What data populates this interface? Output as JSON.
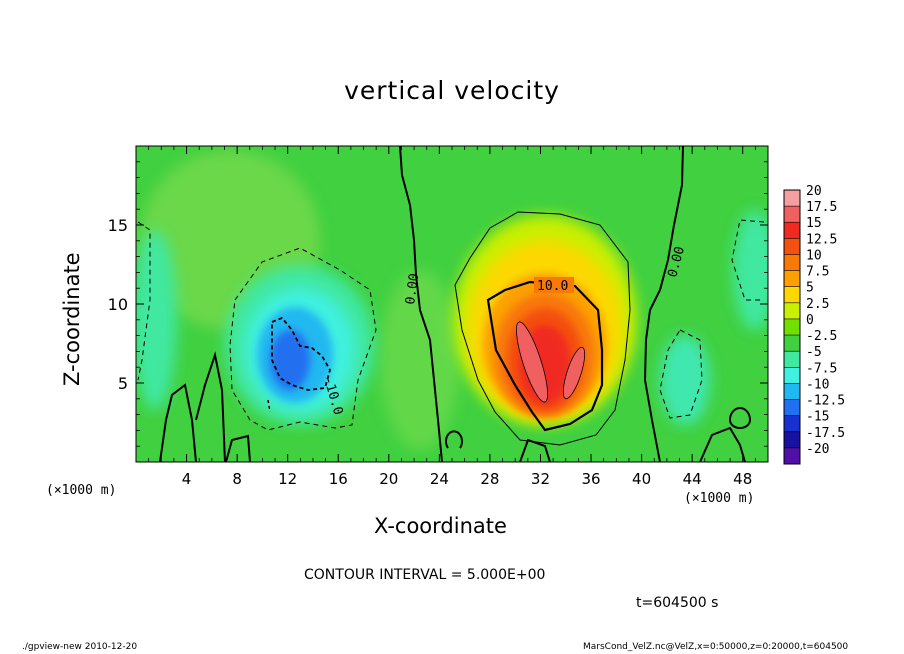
{
  "chart_data": {
    "type": "heatmap",
    "title": "vertical velocity",
    "xlabel": "X-coordinate",
    "ylabel": "Z-coordinate",
    "x_unit_label": "(×1000 m)",
    "xlim": [
      0,
      50
    ],
    "ylim": [
      0,
      20
    ],
    "x_ticks": [
      4,
      8,
      12,
      16,
      20,
      24,
      28,
      32,
      36,
      40,
      44,
      48
    ],
    "y_ticks": [
      5,
      10,
      15
    ],
    "colorbar": {
      "levels": [
        20,
        17.5,
        15,
        12.5,
        10,
        7.5,
        5,
        2.5,
        0,
        -2.5,
        -5,
        -7.5,
        -10,
        -12.5,
        -15,
        -17.5,
        -20
      ],
      "labels": [
        "20",
        "17.5",
        "15",
        "12.5",
        "10",
        "7.5",
        "5",
        "2.5",
        "0",
        "-2.5",
        "-5",
        "-7.5",
        "-10",
        "-12.5",
        "-15",
        "-17.5",
        "-20"
      ],
      "colors": [
        "#f4a0a0",
        "#f06060",
        "#f02a20",
        "#f45010",
        "#f87808",
        "#fca000",
        "#fcd800",
        "#c8f000",
        "#70e000",
        "#40d040",
        "#40e8a0",
        "#40f0e0",
        "#20b8f0",
        "#2070f0",
        "#1830d0",
        "#1810a0",
        "#5010a8"
      ]
    },
    "contour_labels": [
      "0.00",
      "0.00",
      "10.0",
      "-10.0"
    ],
    "features": [
      {
        "name": "updraft core",
        "x_center": 32.5,
        "z_center": 7.0,
        "max_value": 20
      },
      {
        "name": "downdraft region",
        "x_center": 13.5,
        "z_center": 6.5,
        "min_value": -12.5
      }
    ],
    "contour_interval": "CONTOUR INTERVAL = 5.000E+00",
    "time": "t=604500 s"
  },
  "footer": {
    "left": "./gpview-new  2010-12-20",
    "right": "MarsCond_VelZ.nc@VelZ,x=0:50000,z=0:20000,t=604500"
  }
}
